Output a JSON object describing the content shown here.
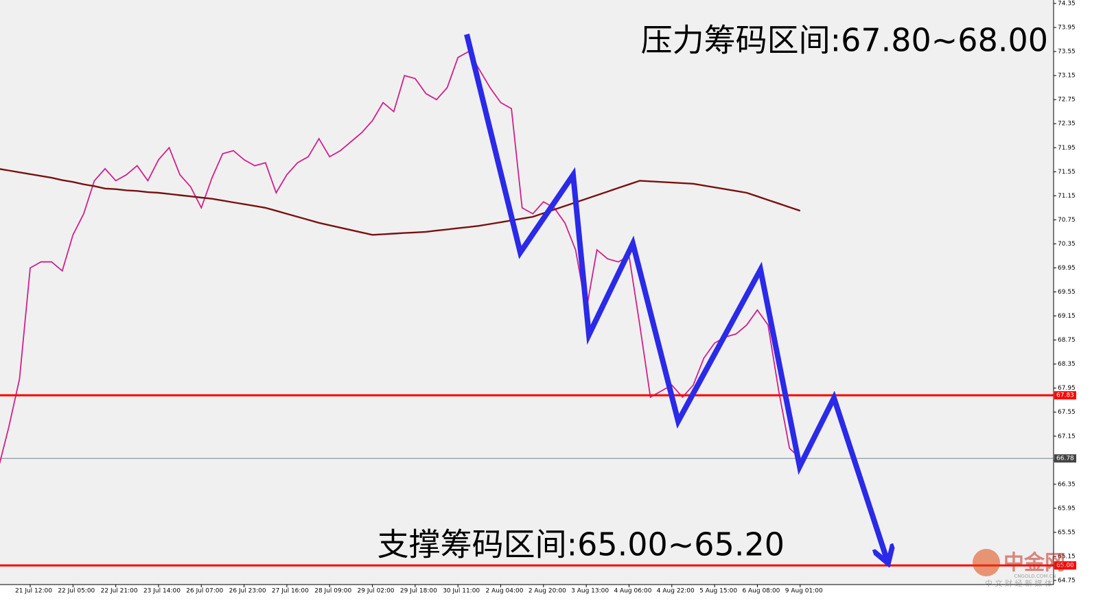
{
  "chart_data": {
    "type": "line",
    "categories": [
      null,
      null,
      null,
      "21 Jul 12:00",
      null,
      null,
      null,
      "22 Jul 05:00",
      null,
      null,
      null,
      "22 Jul 21:00",
      null,
      null,
      null,
      "23 Jul 14:00",
      null,
      null,
      null,
      "26 Jul 07:00",
      null,
      null,
      null,
      "26 Jul 23:00",
      null,
      null,
      null,
      "27 Jul 16:00",
      null,
      null,
      null,
      "28 Jul 09:00",
      null,
      null,
      null,
      "29 Jul 02:00",
      null,
      null,
      null,
      "29 Jul 18:00",
      null,
      null,
      null,
      "30 Jul 11:00",
      null,
      null,
      null,
      "2 Aug 04:00",
      null,
      null,
      null,
      "2 Aug 20:00",
      null,
      null,
      null,
      "3 Aug 13:00",
      null,
      null,
      null,
      "4 Aug 06:00",
      null,
      null,
      null,
      "4 Aug 22:00",
      null,
      null,
      null,
      "5 Aug 15:00",
      null,
      null,
      null,
      "6 Aug 08:00",
      null,
      null,
      null,
      "9 Aug 01:00"
    ],
    "series": [
      {
        "color": "#d0208a",
        "values": [
          66.6,
          67.3,
          68.1,
          69.95,
          70.05,
          70.05,
          69.9,
          70.5,
          70.85,
          71.4,
          71.6,
          71.4,
          71.5,
          71.65,
          71.4,
          71.75,
          71.95,
          71.5,
          71.3,
          70.95,
          71.45,
          71.85,
          71.9,
          71.75,
          71.65,
          71.7,
          71.2,
          71.5,
          71.7,
          71.8,
          72.1,
          71.8,
          71.9,
          72.05,
          72.2,
          72.4,
          72.7,
          72.55,
          73.15,
          73.1,
          72.85,
          72.75,
          72.95,
          73.45,
          73.55,
          73.25,
          72.95,
          72.7,
          72.6,
          70.95,
          70.85,
          71.05,
          70.95,
          70.7,
          70.25,
          69.25,
          70.25,
          70.1,
          70.05,
          70.15,
          69.0,
          67.8,
          67.9,
          68.0,
          67.8,
          68.0,
          68.45,
          68.7,
          68.8,
          68.85,
          69.0,
          69.25,
          69.0,
          67.9,
          66.95,
          66.78
        ]
      },
      {
        "color": "#7a1010",
        "values": [
          71.6,
          71.57,
          71.54,
          71.51,
          71.48,
          71.45,
          71.41,
          71.38,
          71.34,
          71.31,
          71.27,
          71.26,
          71.24,
          71.23,
          71.21,
          71.2,
          71.18,
          71.16,
          71.14,
          71.12,
          71.1,
          71.07,
          71.04,
          71.01,
          70.98,
          70.95,
          70.9,
          70.85,
          70.8,
          70.75,
          70.7,
          70.66,
          70.62,
          70.58,
          70.54,
          70.5,
          70.51,
          70.52,
          70.53,
          70.54,
          70.55,
          70.57,
          70.59,
          70.61,
          70.63,
          70.65,
          70.68,
          70.71,
          70.74,
          70.77,
          70.8,
          70.86,
          70.92,
          70.98,
          71.04,
          71.1,
          71.16,
          71.22,
          71.28,
          71.34,
          71.4,
          71.39,
          71.38,
          71.37,
          71.36,
          71.35,
          71.32,
          71.29,
          71.26,
          71.23,
          71.2,
          71.14,
          71.08,
          71.02,
          70.96,
          70.9
        ]
      }
    ],
    "ylim": [
      64.75,
      74.35
    ],
    "yticks": [
      64.75,
      65.15,
      65.55,
      65.95,
      66.35,
      66.75,
      67.15,
      67.55,
      67.95,
      68.35,
      68.75,
      69.15,
      69.55,
      69.95,
      70.35,
      70.75,
      71.15,
      71.55,
      71.95,
      72.35,
      72.75,
      73.15,
      73.55,
      73.95,
      74.35
    ],
    "levels": [
      {
        "value": 67.83,
        "color": "#ff0000"
      },
      {
        "value": {
          "value": 65,
          "label": "65.00"
        },
        "color": "#ff0000"
      }
    ],
    "annotations": [
      "压力筹码区间:67.80~68.00",
      "支撑筹码区间:65.00~65.20"
    ]
  },
  "watermark": {
    "name": "中金网",
    "url": "CNGOLD.COM.CN",
    "slogan": "中 文 财 经 新 媒 体"
  }
}
